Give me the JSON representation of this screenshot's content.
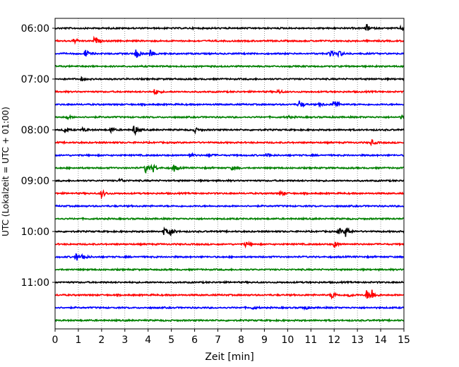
{
  "chart_data": {
    "type": "line",
    "title": "",
    "xlabel": "Zeit  [min]",
    "ylabel": "UTC (Lokalzeit = UTC + 01:00)",
    "xlim": [
      0,
      15
    ],
    "x_ticks": [
      "0",
      "1",
      "2",
      "3",
      "4",
      "5",
      "6",
      "7",
      "8",
      "9",
      "10",
      "11",
      "12",
      "13",
      "14",
      "15"
    ],
    "y_ticks": [
      "06:00",
      "07:00",
      "08:00",
      "09:00",
      "10:00",
      "11:00"
    ],
    "grid": "vertical dotted",
    "trace_minutes": 15,
    "colors": [
      "#000000",
      "#ff0000",
      "#0000ff",
      "#008000"
    ],
    "traces": [
      {
        "start": "06:00",
        "color": "#000000",
        "events": [
          {
            "t": 13.4,
            "amp": 0.5
          },
          {
            "t": 14.9,
            "amp": 0.35
          }
        ]
      },
      {
        "start": "06:15",
        "color": "#ff0000",
        "events": [
          {
            "t": 0.8,
            "amp": 0.35
          },
          {
            "t": 1.7,
            "amp": 0.6
          }
        ]
      },
      {
        "start": "06:30",
        "color": "#0000ff",
        "events": [
          {
            "t": 1.3,
            "amp": 0.55
          },
          {
            "t": 3.5,
            "amp": 0.8
          },
          {
            "t": 4.1,
            "amp": 0.5
          },
          {
            "t": 11.8,
            "amp": 0.55
          },
          {
            "t": 12.2,
            "amp": 0.5
          }
        ]
      },
      {
        "start": "06:45",
        "color": "#008000",
        "events": []
      },
      {
        "start": "07:00",
        "color": "#000000",
        "events": [
          {
            "t": 1.1,
            "amp": 0.25
          }
        ]
      },
      {
        "start": "07:15",
        "color": "#ff0000",
        "events": [
          {
            "t": 4.3,
            "amp": 0.5
          },
          {
            "t": 9.6,
            "amp": 0.3
          }
        ]
      },
      {
        "start": "07:30",
        "color": "#0000ff",
        "events": [
          {
            "t": 10.5,
            "amp": 0.6
          },
          {
            "t": 12.0,
            "amp": 0.8
          },
          {
            "t": 11.4,
            "amp": 0.25
          }
        ]
      },
      {
        "start": "07:45",
        "color": "#008000",
        "events": [
          {
            "t": 0.5,
            "amp": 0.3
          },
          {
            "t": 10.0,
            "amp": 0.2
          },
          {
            "t": 14.9,
            "amp": 0.3
          }
        ]
      },
      {
        "start": "08:00",
        "color": "#000000",
        "events": [
          {
            "t": 0.4,
            "amp": 0.3
          },
          {
            "t": 1.2,
            "amp": 0.3
          },
          {
            "t": 2.4,
            "amp": 0.35
          },
          {
            "t": 3.4,
            "amp": 0.8
          },
          {
            "t": 6.0,
            "amp": 0.35
          }
        ]
      },
      {
        "start": "08:15",
        "color": "#ff0000",
        "events": [
          {
            "t": 13.6,
            "amp": 0.4
          }
        ]
      },
      {
        "start": "08:30",
        "color": "#0000ff",
        "events": [
          {
            "t": 5.8,
            "amp": 0.3
          },
          {
            "t": 6.6,
            "amp": 0.3
          },
          {
            "t": 9.1,
            "amp": 0.3
          }
        ]
      },
      {
        "start": "08:45",
        "color": "#008000",
        "events": [
          {
            "t": 3.9,
            "amp": 0.75
          },
          {
            "t": 4.2,
            "amp": 0.6
          },
          {
            "t": 5.1,
            "amp": 0.55
          },
          {
            "t": 7.6,
            "amp": 0.25
          }
        ]
      },
      {
        "start": "09:00",
        "color": "#000000",
        "events": [
          {
            "t": 2.8,
            "amp": 0.3
          }
        ]
      },
      {
        "start": "09:15",
        "color": "#ff0000",
        "events": [
          {
            "t": 2.0,
            "amp": 0.55
          },
          {
            "t": 9.7,
            "amp": 0.35
          }
        ]
      },
      {
        "start": "09:30",
        "color": "#0000ff",
        "events": []
      },
      {
        "start": "09:45",
        "color": "#008000",
        "events": []
      },
      {
        "start": "10:00",
        "color": "#000000",
        "events": [
          {
            "t": 4.7,
            "amp": 0.6
          },
          {
            "t": 4.95,
            "amp": 0.6
          },
          {
            "t": 12.2,
            "amp": 0.5
          },
          {
            "t": 12.5,
            "amp": 0.85
          }
        ]
      },
      {
        "start": "10:15",
        "color": "#ff0000",
        "events": [
          {
            "t": 8.2,
            "amp": 0.35
          },
          {
            "t": 12.0,
            "amp": 0.45
          }
        ]
      },
      {
        "start": "10:30",
        "color": "#0000ff",
        "events": [
          {
            "t": 0.9,
            "amp": 0.6
          },
          {
            "t": 1.2,
            "amp": 0.45
          }
        ]
      },
      {
        "start": "10:45",
        "color": "#008000",
        "events": []
      },
      {
        "start": "11:00",
        "color": "#000000",
        "events": []
      },
      {
        "start": "11:15",
        "color": "#ff0000",
        "events": [
          {
            "t": 11.9,
            "amp": 0.6
          },
          {
            "t": 13.4,
            "amp": 0.7
          },
          {
            "t": 13.6,
            "amp": 0.85
          },
          {
            "t": 12.6,
            "amp": 0.3
          }
        ]
      },
      {
        "start": "11:30",
        "color": "#0000ff",
        "events": [
          {
            "t": 10.7,
            "amp": 0.35
          },
          {
            "t": 8.5,
            "amp": 0.2
          }
        ]
      },
      {
        "start": "11:45",
        "color": "#008000",
        "events": []
      }
    ]
  }
}
